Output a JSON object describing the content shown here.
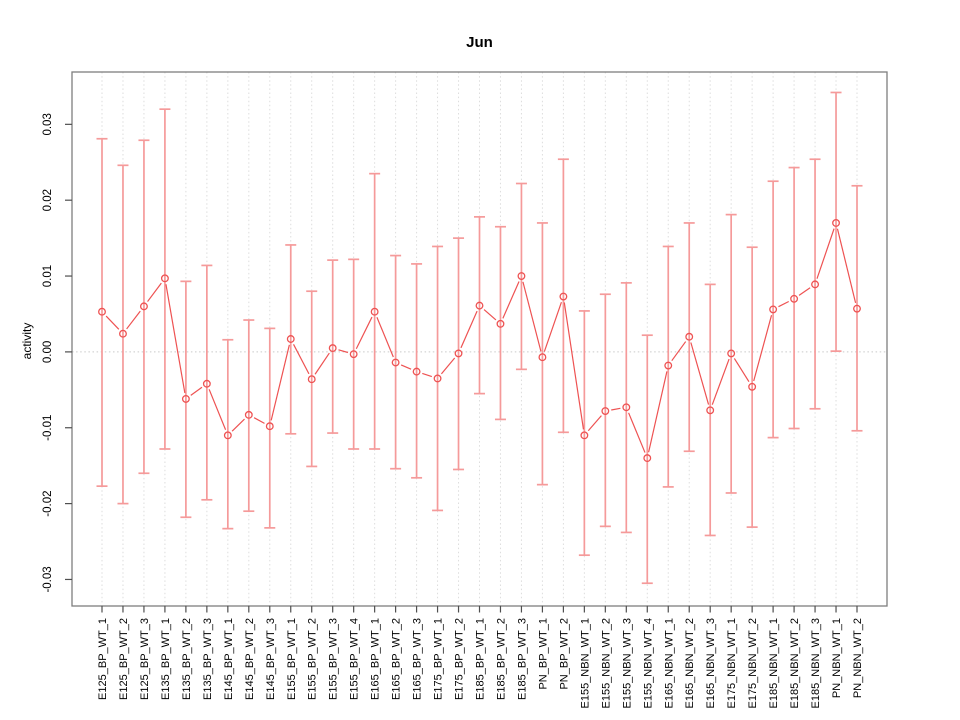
{
  "window": {
    "background": "#ffffff"
  },
  "chart_data": {
    "type": "line",
    "title": "Jun",
    "xlabel": "",
    "ylabel": "activity",
    "legend": "none",
    "grid": {
      "vertical_dotted_per_category": true,
      "horizontal_dotted_zero_line": true
    },
    "ylim": [
      -0.0335,
      0.0369
    ],
    "yticks": [
      -0.03,
      -0.02,
      -0.01,
      0,
      0.01,
      0.02,
      0.03
    ],
    "ytick_labels": [
      "-0.03",
      "-0.02",
      "-0.01",
      "0.00",
      "0.01",
      "0.02",
      "0.03"
    ],
    "categories": [
      "E125_BP_WT_1",
      "E125_BP_WT_2",
      "E125_BP_WT_3",
      "E135_BP_WT_1",
      "E135_BP_WT_2",
      "E135_BP_WT_3",
      "E145_BP_WT_1",
      "E145_BP_WT_2",
      "E145_BP_WT_3",
      "E155_BP_WT_1",
      "E155_BP_WT_2",
      "E155_BP_WT_3",
      "E155_BP_WT_4",
      "E165_BP_WT_1",
      "E165_BP_WT_2",
      "E165_BP_WT_3",
      "E175_BP_WT_1",
      "E175_BP_WT_2",
      "E185_BP_WT_1",
      "E185_BP_WT_2",
      "E185_BP_WT_3",
      "PN_BP_WT_1",
      "PN_BP_WT_2",
      "E155_NBN_WT_1",
      "E155_NBN_WT_2",
      "E155_NBN_WT_3",
      "E155_NBN_WT_4",
      "E165_NBN_WT_1",
      "E165_NBN_WT_2",
      "E165_NBN_WT_3",
      "E175_NBN_WT_1",
      "E175_NBN_WT_2",
      "E185_NBN_WT_1",
      "E185_NBN_WT_2",
      "E185_NBN_WT_3",
      "PN_NBN_WT_1",
      "PN_NBN_WT_2"
    ],
    "series": [
      {
        "name": "activity_mean",
        "values": [
          0.0053,
          0.0024,
          0.006,
          0.0097,
          -0.0062,
          -0.0042,
          -0.011,
          -0.0083,
          -0.0098,
          0.0017,
          -0.0036,
          0.0005,
          -0.0003,
          0.0053,
          -0.0014,
          -0.0026,
          -0.0035,
          -0.0002,
          0.0061,
          0.0037,
          0.01,
          -0.0007,
          0.0073,
          -0.011,
          -0.0078,
          -0.0073,
          -0.014,
          -0.0018,
          0.002,
          -0.0077,
          -0.0002,
          -0.0046,
          0.0056,
          0.007,
          0.0089,
          0.017,
          0.0057
        ]
      },
      {
        "name": "upper_error",
        "values": [
          0.0281,
          0.0246,
          0.0279,
          0.032,
          0.0093,
          0.0114,
          0.0016,
          0.0042,
          0.0031,
          0.0141,
          0.008,
          0.0121,
          0.0122,
          0.0235,
          0.0127,
          0.0116,
          0.0139,
          0.015,
          0.0178,
          0.0165,
          0.0222,
          0.017,
          0.0254,
          0.0054,
          0.0076,
          0.0091,
          0.0022,
          0.0139,
          0.017,
          0.0089,
          0.0181,
          0.0138,
          0.0225,
          0.0243,
          0.0254,
          0.0342,
          0.0219
        ]
      },
      {
        "name": "lower_error",
        "values": [
          -0.0177,
          -0.02,
          -0.016,
          -0.0128,
          -0.0218,
          -0.0195,
          -0.0233,
          -0.021,
          -0.0232,
          -0.0108,
          -0.0151,
          -0.0107,
          -0.0128,
          -0.0128,
          -0.0154,
          -0.0166,
          -0.0209,
          -0.0155,
          -0.0055,
          -0.0089,
          -0.0023,
          -0.0175,
          -0.0106,
          -0.0268,
          -0.023,
          -0.0238,
          -0.0305,
          -0.0178,
          -0.0131,
          -0.0242,
          -0.0186,
          -0.0231,
          -0.0113,
          -0.0101,
          -0.0075,
          0.0001,
          -0.0104
        ]
      }
    ],
    "colors": {
      "series_line_points": "#ee5252",
      "error_bars": "#f59a9a",
      "gridlines": "#dddddd",
      "zero_line": "#c9c9c9",
      "axis_box": "#7e7e7e",
      "tick_marks": "#4f4f4f",
      "tick_label_text": "#000000"
    }
  }
}
